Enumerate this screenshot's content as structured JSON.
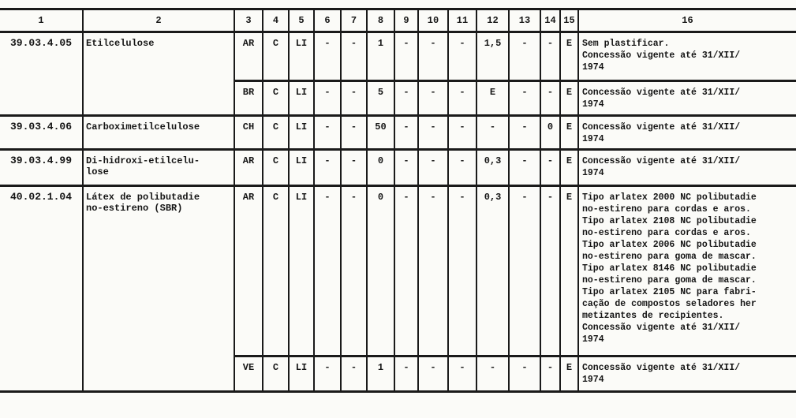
{
  "columns": [
    "1",
    "2",
    "3",
    "4",
    "5",
    "6",
    "7",
    "8",
    "9",
    "10",
    "11",
    "12",
    "13",
    "14",
    "15",
    "16"
  ],
  "rows": [
    {
      "code": "39.03.4.05",
      "name": "Etilcelulose",
      "sub": [
        {
          "cells": [
            "AR",
            "C",
            "LI",
            "-",
            "-",
            "1",
            "-",
            "-",
            "-",
            "1,5",
            "-",
            "-",
            "E"
          ],
          "note": "Sem plastificar.\nConcessão vigente até  31/XII/\n1974"
        },
        {
          "cells": [
            "BR",
            "C",
            "LI",
            "-",
            "-",
            "5",
            "-",
            "-",
            "-",
            "E",
            "-",
            "-",
            "E"
          ],
          "note": "Concessão vigente até  31/XII/\n1974"
        }
      ]
    },
    {
      "code": "39.03.4.06",
      "name": "Carboximetilcelulose",
      "sub": [
        {
          "cells": [
            "CH",
            "C",
            "LI",
            "-",
            "-",
            "50",
            "-",
            "-",
            "-",
            "-",
            "-",
            "0",
            "E"
          ],
          "note": "Concessão vigente até  31/XII/\n1974"
        }
      ]
    },
    {
      "code": "39.03.4.99",
      "name": "Di-hidroxi-etilcelu-\nlose",
      "sub": [
        {
          "cells": [
            "AR",
            "C",
            "LI",
            "-",
            "-",
            "0",
            "-",
            "-",
            "-",
            "0,3",
            "-",
            "-",
            "E"
          ],
          "note": "Concessão vigente  até 31/XII/\n1974"
        }
      ]
    },
    {
      "code": "40.02.1.04",
      "name": "Látex de polibutadie\nno-estireno (SBR)",
      "sub": [
        {
          "cells": [
            "AR",
            "C",
            "LI",
            "-",
            "-",
            "0",
            "-",
            "-",
            "-",
            "0,3",
            "-",
            "-",
            "E"
          ],
          "note": "Tipo arlatex 2000 NC polibutadie\nno-estireno para cordas e aros.\nTipo arlatex 2108 NC polibutadie\nno-estireno para cordas e aros.\nTipo arlatex 2006 NC polibutadie\nno-estireno para goma de mascar.\nTipo arlatex 8146 NC polibutadie\nno-estireno para goma de mascar.\nTipo arlatex 2105 NC para fabri-\ncação de compostos seladores her\nmetizantes de recipientes.\nConcessão vigente  até  31/XII/\n1974"
        },
        {
          "cells": [
            "VE",
            "C",
            "LI",
            "-",
            "-",
            "1",
            "-",
            "-",
            "-",
            "-",
            "-",
            "-",
            "E"
          ],
          "note": "Concessão vigente até  31/XII/\n1974"
        }
      ]
    }
  ]
}
